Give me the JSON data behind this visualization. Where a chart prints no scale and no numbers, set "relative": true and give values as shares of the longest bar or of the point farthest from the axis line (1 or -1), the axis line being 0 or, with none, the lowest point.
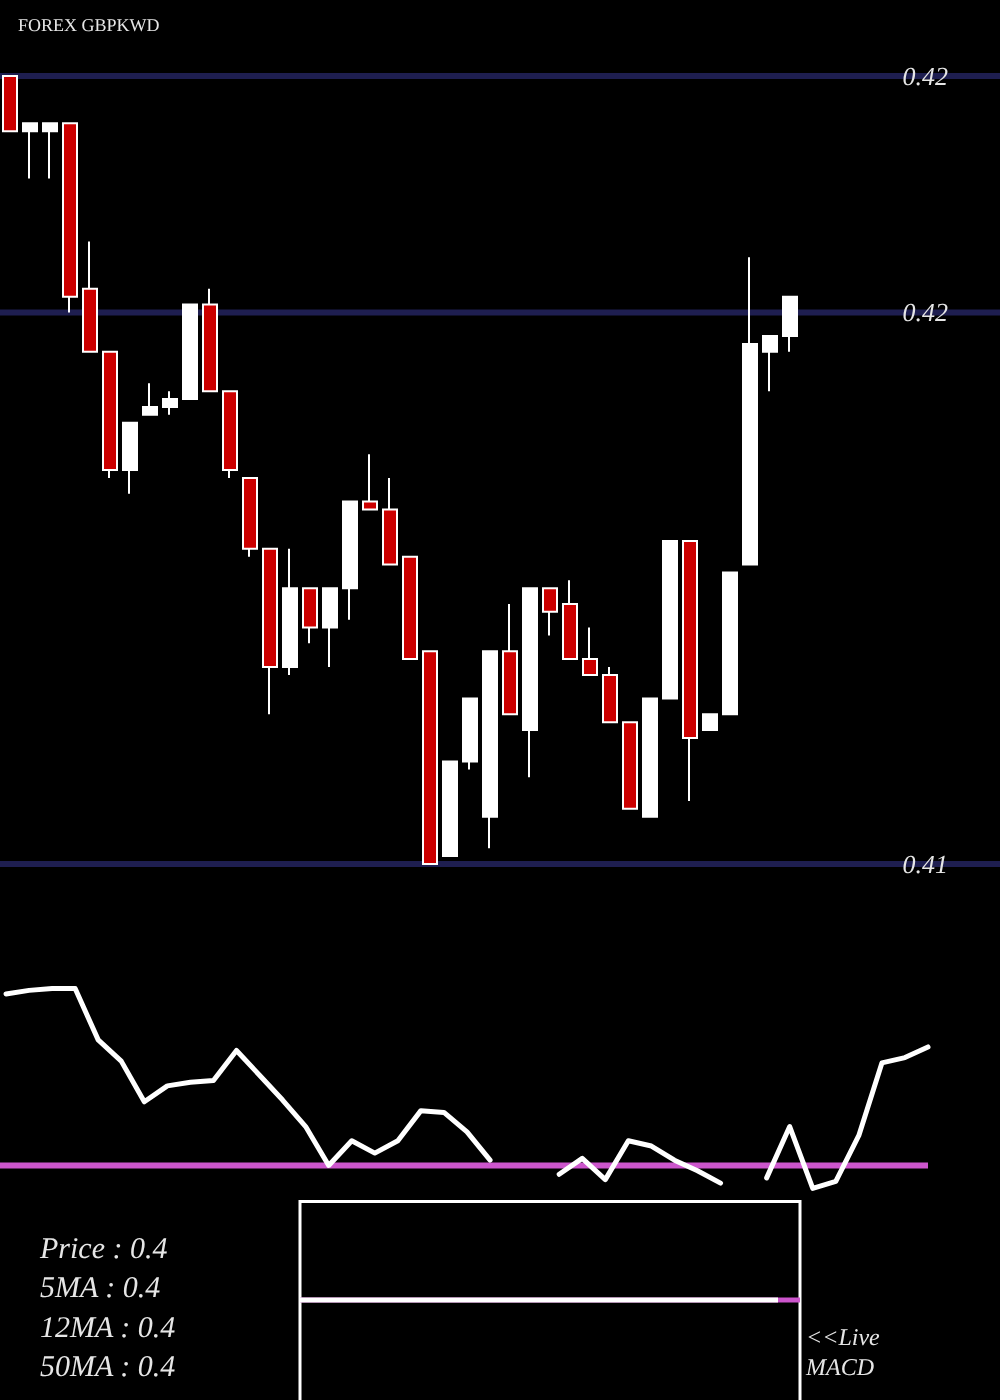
{
  "chart_data": [
    {
      "type": "candlestick",
      "title": "FOREX GBPKWD",
      "ylim": [
        0.41,
        0.42
      ],
      "yticks": [
        {
          "value": 0.42,
          "label": "0.42"
        },
        {
          "value": 0.417,
          "label": "0.42"
        },
        {
          "value": 0.41,
          "label": "0.41"
        }
      ],
      "categories": [
        null,
        null,
        null,
        null,
        null,
        null,
        null,
        null,
        null,
        null,
        null,
        null,
        null,
        null,
        null,
        null,
        null,
        null,
        null,
        null,
        null,
        null,
        null,
        null,
        null,
        null,
        null,
        null,
        null,
        null,
        null,
        null,
        null,
        null,
        null,
        null,
        null,
        null,
        null,
        null
      ],
      "ohlc": [
        [
          0.42,
          0.42,
          0.4193,
          0.4193
        ],
        [
          0.4193,
          0.4194,
          0.4187,
          0.4194
        ],
        [
          0.4193,
          0.4194,
          0.4187,
          0.4194
        ],
        [
          0.4194,
          0.4194,
          0.417,
          0.4172
        ],
        [
          0.4173,
          0.4179,
          0.4165,
          0.4165
        ],
        [
          0.4165,
          0.4165,
          0.4149,
          0.415
        ],
        [
          0.415,
          0.4156,
          0.4147,
          0.4156
        ],
        [
          0.4157,
          0.4161,
          0.4157,
          0.4158
        ],
        [
          0.4158,
          0.416,
          0.4157,
          0.4159
        ],
        [
          0.4159,
          0.4171,
          0.4159,
          0.4171
        ],
        [
          0.4171,
          0.4173,
          0.416,
          0.416
        ],
        [
          0.416,
          0.416,
          0.4149,
          0.415
        ],
        [
          0.4149,
          0.4149,
          0.4139,
          0.414
        ],
        [
          0.414,
          0.414,
          0.4119,
          0.4125
        ],
        [
          0.4125,
          0.414,
          0.4124,
          0.4135
        ],
        [
          0.4135,
          0.4135,
          0.4128,
          0.413
        ],
        [
          0.413,
          0.4135,
          0.4125,
          0.4135
        ],
        [
          0.4135,
          0.4146,
          0.4131,
          0.4146
        ],
        [
          0.4146,
          0.4152,
          0.4145,
          0.4145
        ],
        [
          0.4145,
          0.4149,
          0.4138,
          0.4138
        ],
        [
          0.4139,
          0.4139,
          0.4126,
          0.4126
        ],
        [
          0.4127,
          0.4127,
          0.41,
          0.41
        ],
        [
          0.4101,
          0.4113,
          0.4101,
          0.4113
        ],
        [
          0.4113,
          0.4121,
          0.4112,
          0.4121
        ],
        [
          0.4106,
          0.4127,
          0.4102,
          0.4127
        ],
        [
          0.4127,
          0.4133,
          0.4119,
          0.4119
        ],
        [
          0.4117,
          0.4135,
          0.4111,
          0.4135
        ],
        [
          0.4135,
          0.4135,
          0.4129,
          0.4132
        ],
        [
          0.4133,
          0.4136,
          0.4126,
          0.4126
        ],
        [
          0.4126,
          0.413,
          0.4124,
          0.4124
        ],
        [
          0.4124,
          0.4125,
          0.4118,
          0.4118
        ],
        [
          0.4118,
          0.4118,
          0.4107,
          0.4107
        ],
        [
          0.4106,
          0.4121,
          0.4106,
          0.4121
        ],
        [
          0.4121,
          0.4141,
          0.4121,
          0.4141
        ],
        [
          0.4141,
          0.4141,
          0.4108,
          0.4116
        ],
        [
          0.4117,
          0.4119,
          0.4117,
          0.4119
        ],
        [
          0.4119,
          0.4137,
          0.4119,
          0.4137
        ],
        [
          0.4138,
          0.4177,
          0.4138,
          0.4166
        ],
        [
          0.4165,
          0.4167,
          0.416,
          0.4167
        ],
        [
          0.4167,
          0.4172,
          0.4165,
          0.4172
        ]
      ],
      "colors": [
        "#cc0000",
        "#ffffff",
        "#ffffff",
        "#cc0000",
        "#cc0000",
        "#cc0000",
        "#ffffff",
        "#ffffff",
        "#ffffff",
        "#ffffff",
        "#cc0000",
        "#cc0000",
        "#cc0000",
        "#cc0000",
        "#ffffff",
        "#cc0000",
        "#ffffff",
        "#ffffff",
        "#cc0000",
        "#cc0000",
        "#cc0000",
        "#cc0000",
        "#ffffff",
        "#ffffff",
        "#ffffff",
        "#cc0000",
        "#ffffff",
        "#cc0000",
        "#cc0000",
        "#cc0000",
        "#cc0000",
        "#cc0000",
        "#ffffff",
        "#ffffff",
        "#cc0000",
        "#ffffff",
        "#ffffff",
        "#ffffff",
        "#ffffff",
        "#ffffff"
      ],
      "ref_lines": [
        {
          "axis": "y",
          "value": 0.42,
          "color": "#1e1e50"
        },
        {
          "axis": "y",
          "value": 0.417,
          "color": "#1e1e50"
        },
        {
          "axis": "y",
          "value": 0.41,
          "color": "#1e1e50"
        }
      ]
    },
    {
      "type": "line",
      "relative": true,
      "categories": [
        null,
        null,
        null,
        null,
        null,
        null,
        null,
        null,
        null,
        null,
        null,
        null,
        null,
        null,
        null,
        null,
        null,
        null,
        null,
        null,
        null,
        null,
        null,
        null,
        null,
        null,
        null,
        null,
        null,
        null,
        null,
        null,
        null,
        null,
        null,
        null,
        null,
        null,
        null,
        null,
        null
      ],
      "series": [
        {
          "color": "#ffffff",
          "values": [
            0.97,
            0.99,
            1,
            1,
            0.71,
            0.59,
            0.36,
            0.45,
            0.47,
            0.48,
            0.65,
            0.51,
            0.37,
            0.22,
            0,
            0.14,
            0.07,
            0.14,
            0.31,
            0.3,
            0.19,
            0.03,
            null,
            null,
            null,
            null,
            null,
            null,
            null,
            null,
            null,
            null,
            null,
            null,
            null,
            null,
            null,
            null,
            null,
            null,
            null
          ]
        },
        {
          "color": "#ffffff",
          "values": [
            null,
            null,
            null,
            null,
            null,
            null,
            null,
            null,
            null,
            null,
            null,
            null,
            null,
            null,
            null,
            null,
            null,
            null,
            null,
            null,
            null,
            null,
            null,
            null,
            -0.05,
            0.04,
            -0.08,
            0.14,
            0.11,
            0.03,
            -0.03,
            -0.1,
            null,
            null,
            null,
            null,
            null,
            null,
            null,
            null,
            null
          ]
        },
        {
          "color": "#ffffff",
          "values": [
            null,
            null,
            null,
            null,
            null,
            null,
            null,
            null,
            null,
            null,
            null,
            null,
            null,
            null,
            null,
            null,
            null,
            null,
            null,
            null,
            null,
            null,
            null,
            null,
            null,
            null,
            null,
            null,
            null,
            null,
            null,
            null,
            null,
            -0.07,
            0.22,
            -0.13,
            -0.09,
            0.17,
            0.58,
            0.61,
            0.67
          ]
        }
      ],
      "ref_lines": [
        {
          "axis": "y",
          "value": 0,
          "color": "#cc55cc"
        }
      ]
    },
    {
      "type": "other",
      "annotations": [
        "Price : 0.4",
        "5MA : 0.4",
        "12MA : 0.4",
        "50MA : 0.4",
        "<<Live MACD"
      ]
    }
  ]
}
